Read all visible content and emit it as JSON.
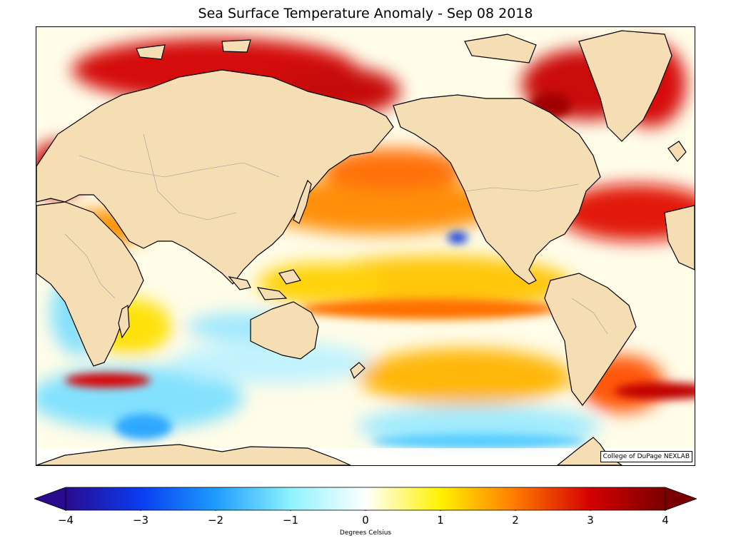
{
  "figure": {
    "title": "Sea Surface Temperature Anomaly - Sep 08 2018",
    "credit": "College of DuPage NEXLAB"
  },
  "colorbar": {
    "label": "Degrees Celsius",
    "min": -4,
    "max": 4,
    "ticks": [
      -4,
      -3,
      -2,
      -1,
      0,
      1,
      2,
      3,
      4
    ],
    "tick_labels": [
      "−4",
      "−3",
      "−2",
      "−1",
      "0",
      "1",
      "2",
      "3",
      "4"
    ],
    "extend": "both",
    "stops": [
      {
        "value": -4,
        "color": "#2a0a8f"
      },
      {
        "value": -3,
        "color": "#0a3cf0"
      },
      {
        "value": -2,
        "color": "#1e9cff"
      },
      {
        "value": -1,
        "color": "#8ef2ff"
      },
      {
        "value": 0,
        "color": "#ffffff"
      },
      {
        "value": 1,
        "color": "#fff200"
      },
      {
        "value": 2,
        "color": "#ff7a00"
      },
      {
        "value": 3,
        "color": "#d40000"
      },
      {
        "value": 4,
        "color": "#7a0000"
      }
    ]
  },
  "map": {
    "projection": "equirectangular, Pacific-centered",
    "land_color": "#f5deb3",
    "coastline_color": "#000000",
    "border_color": "#999999",
    "missing_color": "#ffffff"
  }
}
